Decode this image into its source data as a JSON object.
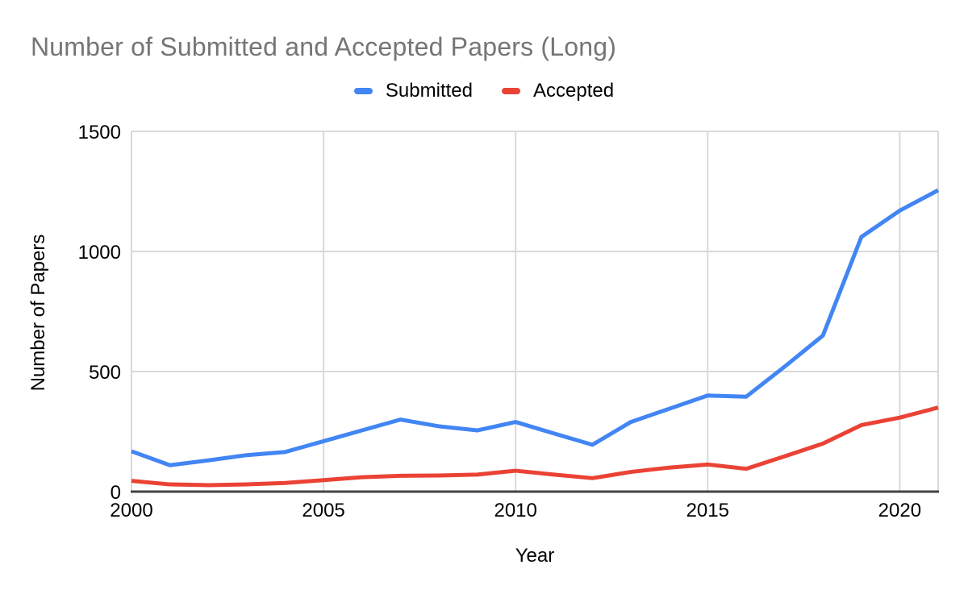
{
  "page": {
    "title": "Number of Submitted and Accepted Papers (Long)"
  },
  "legend": {
    "items": [
      {
        "label": "Submitted",
        "color": "#4285F4"
      },
      {
        "label": "Accepted",
        "color": "#EA4335"
      }
    ]
  },
  "chart_data": {
    "type": "line",
    "title": "Number of Submitted and Accepted Papers (Long)",
    "xlabel": "Year",
    "ylabel": "Number of Papers",
    "x": [
      2000,
      2001,
      2002,
      2003,
      2004,
      2005,
      2006,
      2007,
      2008,
      2009,
      2010,
      2011,
      2012,
      2013,
      2014,
      2015,
      2016,
      2017,
      2018,
      2019,
      2020,
      2021
    ],
    "series": [
      {
        "name": "Submitted",
        "color": "#4285F4",
        "values": [
          168,
          110,
          130,
          152,
          165,
          210,
          255,
          300,
          272,
          255,
          290,
          242,
          195,
          290,
          345,
          400,
          395,
          520,
          650,
          1060,
          1170,
          1255
        ]
      },
      {
        "name": "Accepted",
        "color": "#EA4335",
        "values": [
          45,
          30,
          27,
          30,
          36,
          48,
          60,
          66,
          67,
          71,
          87,
          71,
          56,
          82,
          100,
          113,
          95,
          147,
          200,
          277,
          308,
          350
        ]
      }
    ],
    "ylim": [
      0,
      1500
    ],
    "yticks": [
      0,
      500,
      1000,
      1500
    ],
    "xticks": [
      2000,
      2005,
      2010,
      2015,
      2020
    ],
    "grid": true,
    "legend_position": "top-center",
    "colors": {
      "grid": "#d9d9d9",
      "axis": "#424242",
      "title": "#757575",
      "tick_text": "#000000"
    }
  }
}
